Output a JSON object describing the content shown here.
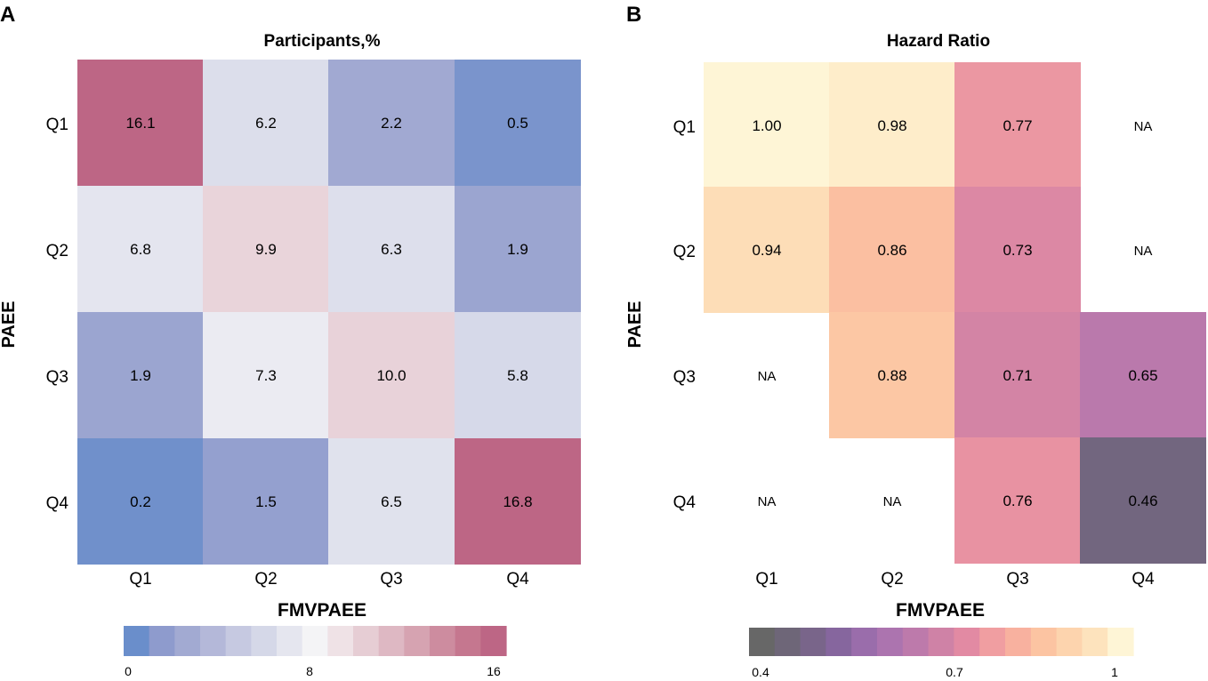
{
  "chart_data": [
    {
      "panel": "A",
      "type": "heatmap",
      "title": "Participants,%",
      "xlabel": "FMVPAEE",
      "ylabel": "PAEE",
      "x_categories": [
        "Q1",
        "Q2",
        "Q3",
        "Q4"
      ],
      "y_categories": [
        "Q1",
        "Q2",
        "Q3",
        "Q4"
      ],
      "values": [
        [
          "16.1",
          "6.2",
          "2.2",
          "0.5"
        ],
        [
          "6.8",
          "9.9",
          "6.3",
          "1.9"
        ],
        [
          "1.9",
          "7.3",
          "10.0",
          "5.8"
        ],
        [
          "0.2",
          "1.5",
          "6.5",
          "16.8"
        ]
      ],
      "colorbar": {
        "colors": [
          "#6a8ecb",
          "#8e9bcd",
          "#a2aad2",
          "#b4b8d9",
          "#c6c9e1",
          "#d5d8e8",
          "#e5e6ef",
          "#f4f4f6",
          "#efe2e6",
          "#e6cdd4",
          "#deb8c3",
          "#d6a3b1",
          "#cd8c9f",
          "#c5778f",
          "#bd6685"
        ],
        "tick_labels": [
          "0",
          "8",
          "16"
        ],
        "range": [
          0,
          16
        ]
      }
    },
    {
      "panel": "B",
      "type": "heatmap",
      "title": "Hazard Ratio",
      "xlabel": "FMVPAEE",
      "ylabel": "PAEE",
      "x_categories": [
        "Q1",
        "Q2",
        "Q3",
        "Q4"
      ],
      "y_categories": [
        "Q1",
        "Q2",
        "Q3",
        "Q4"
      ],
      "values": [
        [
          "1.00",
          "0.98",
          "0.77",
          "NA"
        ],
        [
          "0.94",
          "0.86",
          "0.73",
          "NA"
        ],
        [
          "NA",
          "0.88",
          "0.71",
          "0.65"
        ],
        [
          "NA",
          "NA",
          "0.76",
          "0.46"
        ]
      ],
      "colorbar": {
        "colors": [
          "#676767",
          "#6e6678",
          "#79658a",
          "#86669e",
          "#9a6dab",
          "#ac74af",
          "#bd7aab",
          "#cf82a6",
          "#e28aa3",
          "#f09ea1",
          "#f8b19f",
          "#fcc4a2",
          "#fdd4ae",
          "#fde3bd",
          "#fef5d6"
        ],
        "tick_labels": [
          "0.4",
          "0.7",
          "1"
        ],
        "range": [
          0.4,
          1
        ]
      }
    }
  ],
  "panel_labels": [
    "A",
    "B"
  ]
}
